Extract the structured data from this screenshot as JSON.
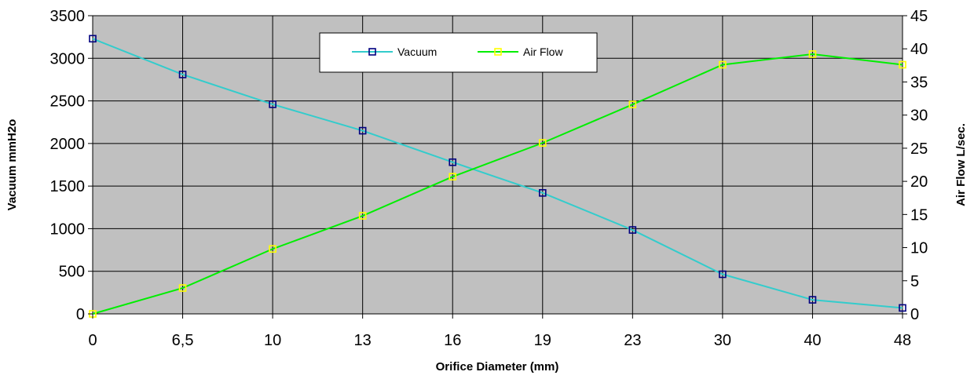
{
  "chart_data": {
    "type": "line",
    "categories": [
      "0",
      "6,5",
      "10",
      "13",
      "16",
      "19",
      "23",
      "30",
      "40",
      "48"
    ],
    "xlabel": "Orifice Diameter (mm)",
    "ylabel": "Vacuum mmH2o",
    "y2label": "Air Flow L/sec.",
    "ylim": [
      0,
      3500
    ],
    "y2lim": [
      0,
      45
    ],
    "yticks": [
      0,
      500,
      1000,
      1500,
      2000,
      2500,
      3000,
      3500
    ],
    "y2ticks": [
      0,
      5,
      10,
      15,
      20,
      25,
      30,
      35,
      40,
      45
    ],
    "grid": true,
    "legend_position": "top-center",
    "series": [
      {
        "name": "Vacuum",
        "axis": "left",
        "color": "#33cccc",
        "marker_color": "#000080",
        "values": [
          3230,
          2810,
          2460,
          2150,
          1780,
          1420,
          985,
          465,
          165,
          70
        ]
      },
      {
        "name": "Air Flow",
        "axis": "right",
        "color": "#00ee00",
        "marker_color": "#ffff00",
        "values": [
          0,
          3.9,
          9.8,
          14.8,
          20.7,
          25.8,
          31.6,
          37.6,
          39.2,
          37.6
        ]
      }
    ],
    "plot_background": "#c0c0c0"
  }
}
